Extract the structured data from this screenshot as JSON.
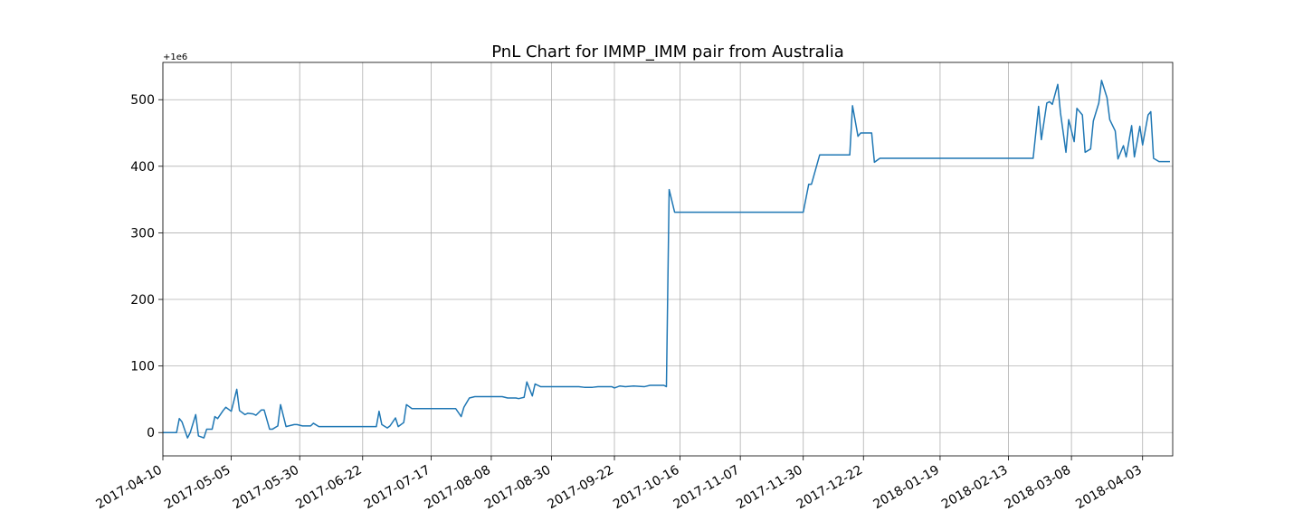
{
  "chart_data": {
    "type": "line",
    "title": "PnL Chart for IMMP_IMM pair from Australia",
    "y_offset_label": "+1e6",
    "color": "#1f77b4",
    "grid": true,
    "xlim": [
      "2017-04-10",
      "2018-04-14"
    ],
    "xticks": [
      "2017-04-10",
      "2017-05-05",
      "2017-05-30",
      "2017-06-22",
      "2017-07-17",
      "2017-08-08",
      "2017-08-30",
      "2017-09-22",
      "2017-10-16",
      "2017-11-07",
      "2017-11-30",
      "2017-12-22",
      "2018-01-19",
      "2018-02-13",
      "2018-03-08",
      "2018-04-03"
    ],
    "ylim": [
      -35,
      556
    ],
    "yticks": [
      0,
      100,
      200,
      300,
      400,
      500
    ],
    "x": [
      "2017-04-10",
      "2017-04-15",
      "2017-04-16",
      "2017-04-17",
      "2017-04-19",
      "2017-04-20",
      "2017-04-22",
      "2017-04-23",
      "2017-04-25",
      "2017-04-26",
      "2017-04-28",
      "2017-04-29",
      "2017-04-30",
      "2017-05-02",
      "2017-05-03",
      "2017-05-05",
      "2017-05-07",
      "2017-05-08",
      "2017-05-10",
      "2017-05-11",
      "2017-05-13",
      "2017-05-14",
      "2017-05-16",
      "2017-05-17",
      "2017-05-19",
      "2017-05-20",
      "2017-05-22",
      "2017-05-23",
      "2017-05-25",
      "2017-05-26",
      "2017-05-28",
      "2017-05-29",
      "2017-05-31",
      "2017-06-01",
      "2017-06-03",
      "2017-06-04",
      "2017-06-06",
      "2017-06-27",
      "2017-06-28",
      "2017-06-29",
      "2017-07-01",
      "2017-07-02",
      "2017-07-04",
      "2017-07-05",
      "2017-07-07",
      "2017-07-08",
      "2017-07-10",
      "2017-07-26",
      "2017-07-28",
      "2017-07-29",
      "2017-07-31",
      "2017-08-02",
      "2017-08-12",
      "2017-08-14",
      "2017-08-17",
      "2017-08-18",
      "2017-08-20",
      "2017-08-21",
      "2017-08-23",
      "2017-08-24",
      "2017-08-26",
      "2017-09-09",
      "2017-09-11",
      "2017-09-14",
      "2017-09-16",
      "2017-09-21",
      "2017-09-22",
      "2017-09-24",
      "2017-09-26",
      "2017-09-29",
      "2017-10-03",
      "2017-10-05",
      "2017-10-10",
      "2017-10-11",
      "2017-10-12",
      "2017-10-14",
      "2017-11-30",
      "2017-12-02",
      "2017-12-03",
      "2017-12-06",
      "2017-12-17",
      "2017-12-18",
      "2017-12-20",
      "2017-12-21",
      "2017-12-25",
      "2017-12-26",
      "2017-12-28",
      "2018-02-22",
      "2018-02-24",
      "2018-02-25",
      "2018-02-27",
      "2018-02-28",
      "2018-03-01",
      "2018-03-03",
      "2018-03-04",
      "2018-03-06",
      "2018-03-07",
      "2018-03-09",
      "2018-03-10",
      "2018-03-12",
      "2018-03-13",
      "2018-03-15",
      "2018-03-16",
      "2018-03-18",
      "2018-03-19",
      "2018-03-21",
      "2018-03-22",
      "2018-03-24",
      "2018-03-25",
      "2018-03-27",
      "2018-03-28",
      "2018-03-30",
      "2018-03-31",
      "2018-04-02",
      "2018-04-03",
      "2018-04-05",
      "2018-04-06",
      "2018-04-07",
      "2018-04-09",
      "2018-04-13"
    ],
    "values": [
      0,
      0,
      21,
      16,
      -8,
      0,
      27,
      -5,
      -8,
      5,
      5,
      24,
      21,
      33,
      38,
      32,
      65,
      33,
      27,
      29,
      28,
      26,
      34,
      34,
      5,
      5,
      10,
      42,
      9,
      10,
      12,
      12,
      10,
      10,
      10,
      14,
      9,
      9,
      32,
      12,
      7,
      10,
      22,
      9,
      15,
      42,
      36,
      36,
      24,
      38,
      52,
      54,
      54,
      52,
      52,
      51,
      53,
      76,
      55,
      73,
      69,
      69,
      68,
      68,
      69,
      69,
      67,
      70,
      69,
      70,
      69,
      71,
      71,
      69,
      365,
      331,
      331,
      373,
      373,
      417,
      417,
      491,
      445,
      450,
      450,
      406,
      412,
      412,
      490,
      440,
      495,
      497,
      493,
      523,
      480,
      421,
      470,
      437,
      487,
      477,
      421,
      426,
      468,
      495,
      529,
      503,
      470,
      453,
      411,
      431,
      414,
      461,
      414,
      460,
      432,
      477,
      482,
      412,
      407,
      407
    ]
  }
}
